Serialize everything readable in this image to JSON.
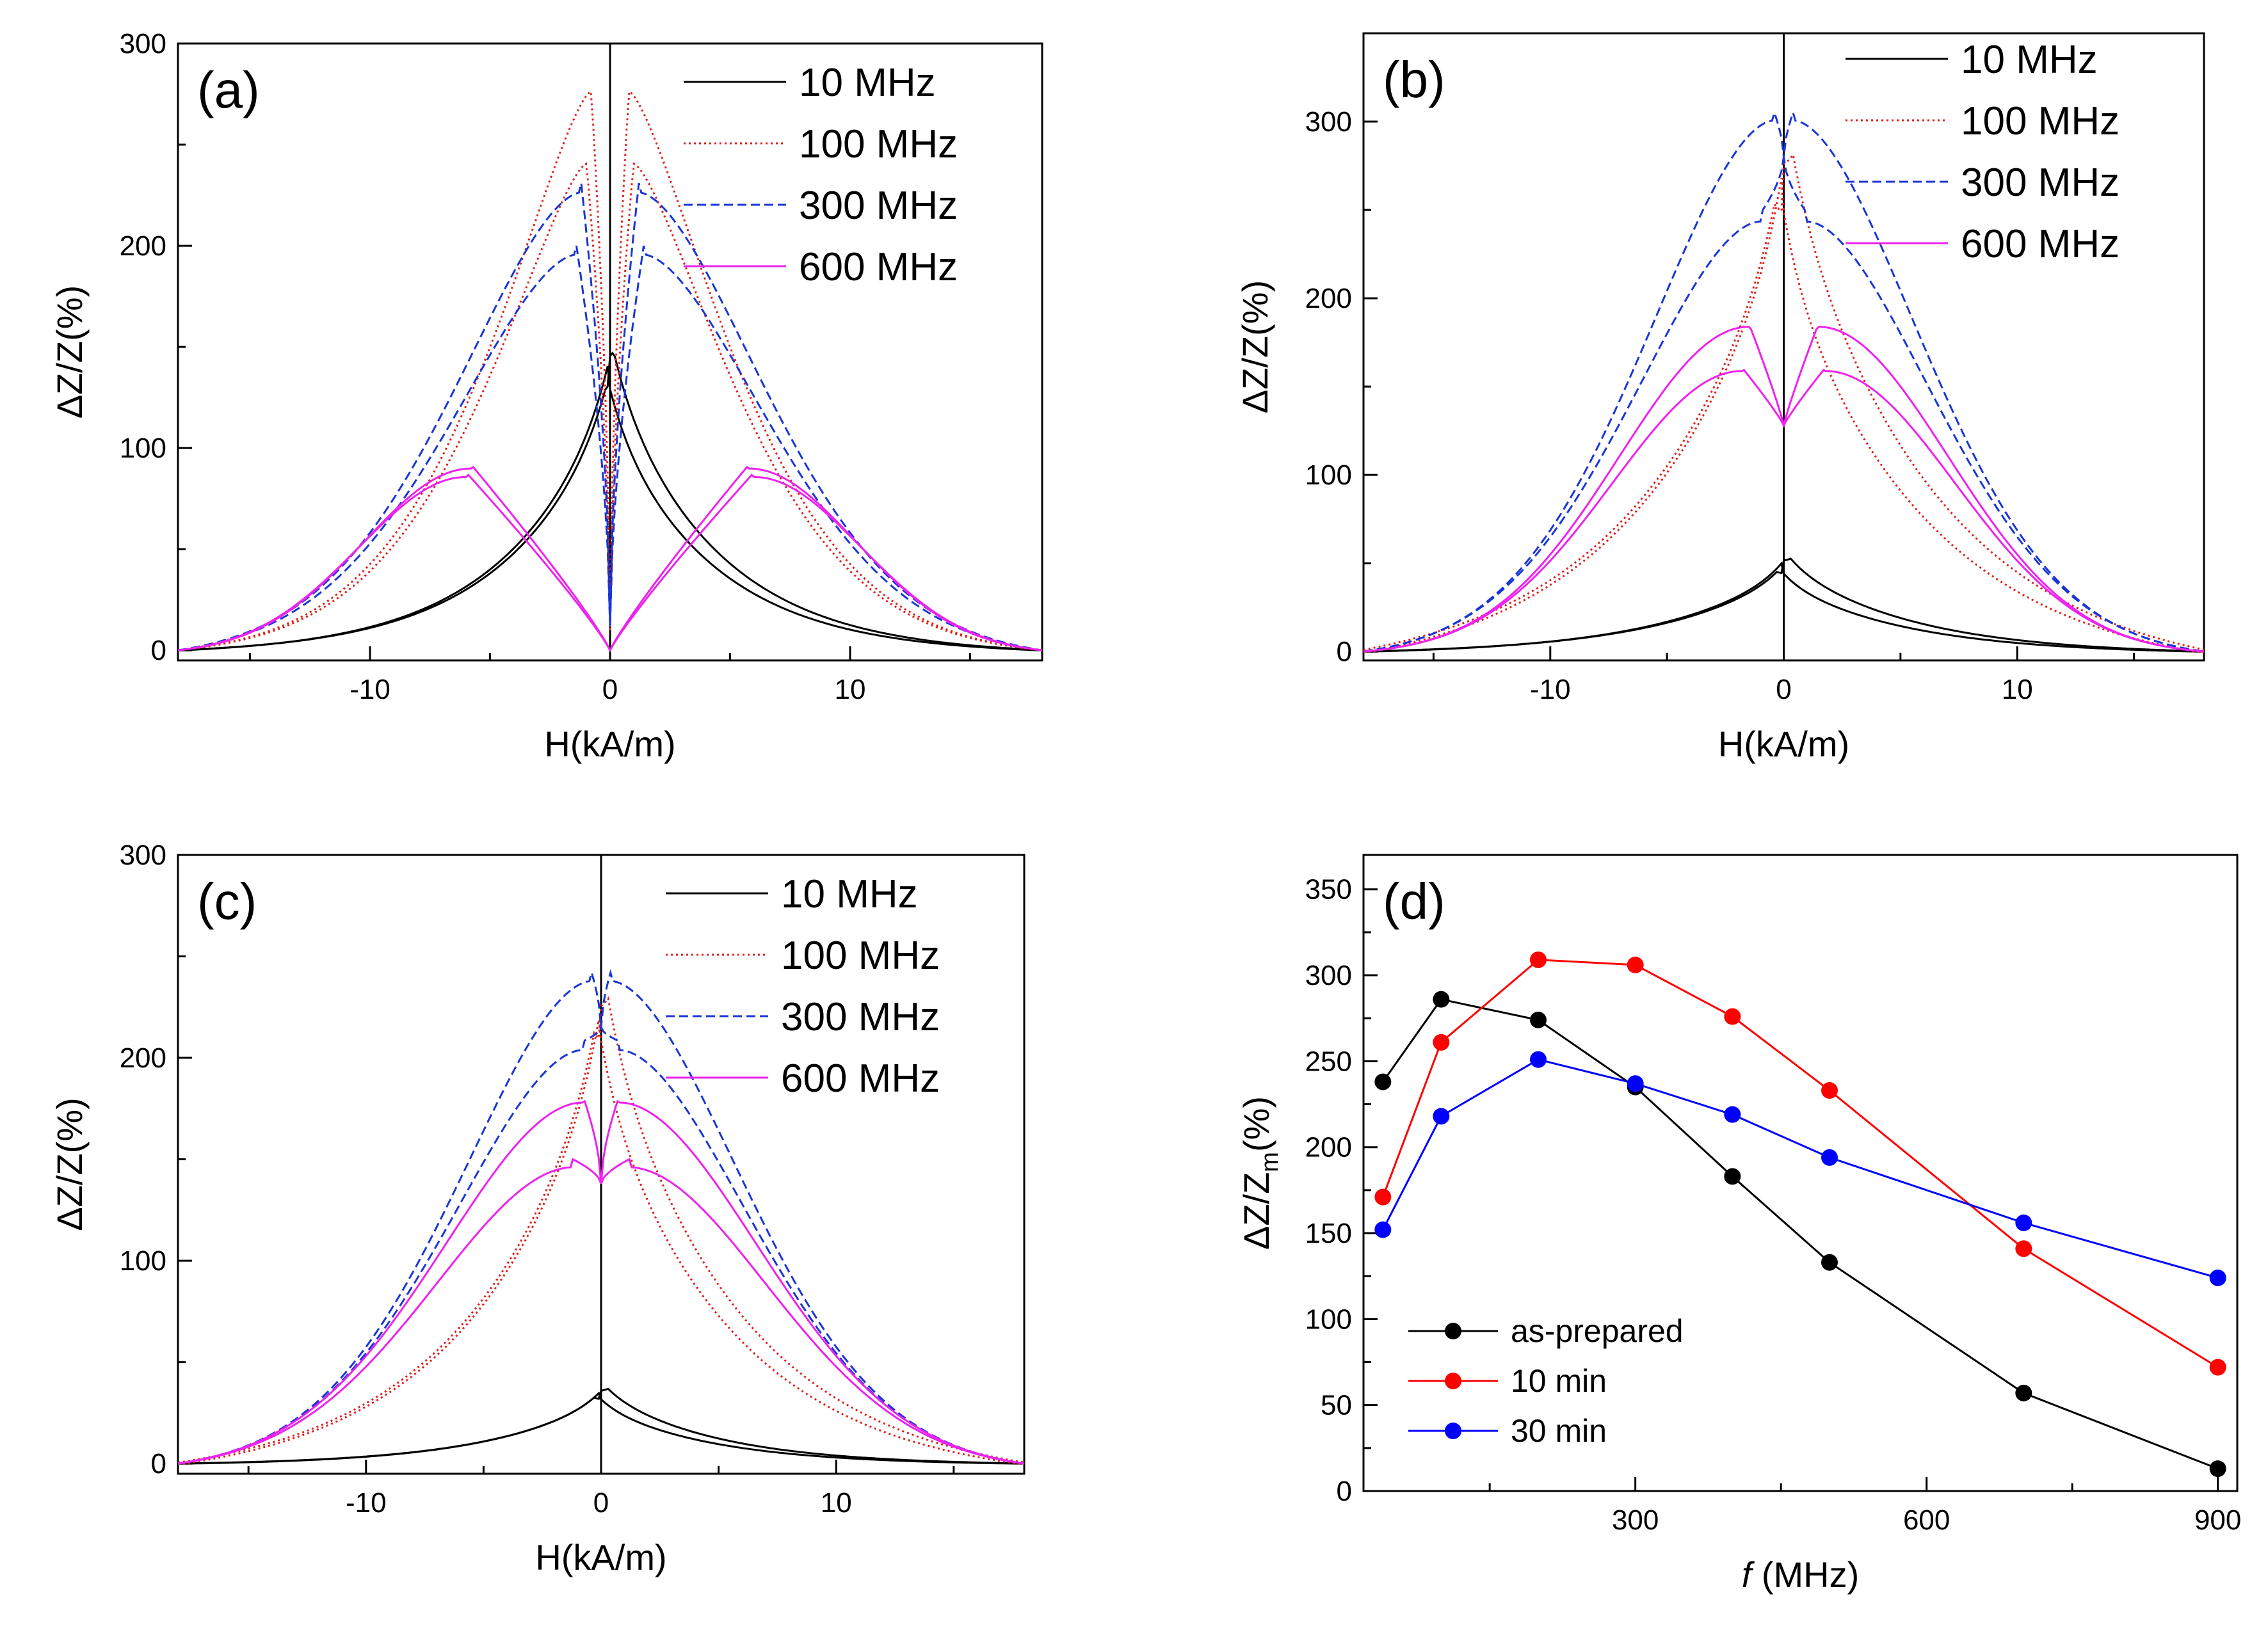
{
  "chart_data": [
    {
      "type": "line",
      "panel_label": "(a)",
      "xlabel": "H(kA/m)",
      "ylabel": "ΔZ/Z(%)",
      "xlim": [
        -18,
        18
      ],
      "ylim": [
        -5,
        300
      ],
      "xticks": [
        -10,
        0,
        10
      ],
      "yticks": [
        0,
        100,
        200,
        300
      ],
      "legend": "top-right",
      "series": [
        {
          "name": "10 MHz",
          "color": "#000000",
          "dash": "solid",
          "model": {
            "type": "peak",
            "peak": 133,
            "dip": 0,
            "w": 4.5,
            "a": 0.18,
            "plateau": 0,
            "mid": 0,
            "shift": 0.15,
            "peak2": 118
          }
        },
        {
          "name": "100 MHz",
          "color": "#e0201c",
          "dash": "dotted",
          "model": {
            "type": "dip",
            "peak": 280,
            "pos": 0.8,
            "tail": 5.5,
            "pow": 1.4,
            "dipw": 0.5,
            "dipmin": 10,
            "peak2": 244,
            "pos2": 1.0
          }
        },
        {
          "name": "300 MHz",
          "color": "#1a35d6",
          "dash": "dashed",
          "model": {
            "type": "dip",
            "peak": 231,
            "pos": 1.2,
            "tail": 7.5,
            "pow": 1.7,
            "dipw": 0.7,
            "dipmin": 12,
            "peak2": 200,
            "pos2": 1.4
          }
        },
        {
          "name": "600 MHz",
          "color": "#ee22ee",
          "dash": "solid",
          "model": {
            "type": "dip",
            "peak": 92,
            "pos": 5.8,
            "tail": 6.6,
            "pow": 2.0,
            "dipw": 3.5,
            "dipmin": 0,
            "peak2": 88,
            "pos2": 6.0
          }
        }
      ]
    },
    {
      "type": "line",
      "panel_label": "(b)",
      "xlabel": "H(kA/m)",
      "ylabel": "ΔZ/Z(%)",
      "xlim": [
        -18,
        18
      ],
      "ylim": [
        -5,
        350
      ],
      "xticks": [
        -10,
        0,
        10
      ],
      "yticks": [
        0,
        100,
        200,
        300
      ],
      "legend": "top-right",
      "series": [
        {
          "name": "10 MHz",
          "color": "#000000",
          "dash": "solid",
          "model": {
            "type": "peak",
            "peak": 49,
            "w": 5.5,
            "peak2": 42,
            "shift": 0.3
          }
        },
        {
          "name": "100 MHz",
          "color": "#e0201c",
          "dash": "dotted",
          "model": {
            "type": "peak",
            "peak": 271,
            "w": 6.5,
            "peak2": 244,
            "shift": 0.4
          }
        },
        {
          "name": "300 MHz",
          "color": "#1a35d6",
          "dash": "dashed",
          "model": {
            "type": "dip",
            "peak": 305,
            "pos": 0.4,
            "tail": 8.0,
            "pow": 1.8,
            "dipw": 0.3,
            "dipmin": 280,
            "peak2": 248,
            "pos2": 1.0
          }
        },
        {
          "name": "600 MHz",
          "color": "#ee22ee",
          "dash": "solid",
          "model": {
            "type": "dip",
            "peak": 186,
            "pos": 1.5,
            "tail": 8.2,
            "pow": 2.0,
            "dipw": 1.0,
            "dipmin": 128,
            "peak2": 161,
            "pos2": 1.8
          }
        }
      ]
    },
    {
      "type": "line",
      "panel_label": "(c)",
      "xlabel": "H(kA/m)",
      "ylabel": "ΔZ/Z(%)",
      "xlim": [
        -18,
        18
      ],
      "ylim": [
        -5,
        300
      ],
      "xticks": [
        -10,
        0,
        10
      ],
      "yticks": [
        0,
        100,
        200,
        300
      ],
      "legend": "top-right",
      "series": [
        {
          "name": "10 MHz",
          "color": "#000000",
          "dash": "solid",
          "model": {
            "type": "peak",
            "peak": 34,
            "w": 5.0,
            "peak2": 30,
            "shift": 0.3
          }
        },
        {
          "name": "100 MHz",
          "color": "#e0201c",
          "dash": "dotted",
          "model": {
            "type": "peak",
            "peak": 216,
            "w": 6.0,
            "peak2": 200,
            "shift": 0.3
          }
        },
        {
          "name": "300 MHz",
          "color": "#1a35d6",
          "dash": "dashed",
          "model": {
            "type": "dip",
            "peak": 242,
            "pos": 0.4,
            "tail": 8.2,
            "pow": 1.8,
            "dipw": 0.3,
            "dipmin": 215,
            "peak2": 208,
            "pos2": 0.8
          }
        },
        {
          "name": "600 MHz",
          "color": "#ee22ee",
          "dash": "solid",
          "model": {
            "type": "dip",
            "peak": 182,
            "pos": 0.8,
            "tail": 8.8,
            "pow": 1.9,
            "dipw": 0.6,
            "dipmin": 138,
            "peak2": 150,
            "pos2": 1.2
          }
        }
      ]
    },
    {
      "type": "line",
      "panel_label": "(d)",
      "xlabel_italic": "f",
      "xlabel": "(MHz)",
      "ylabel": "ΔZ/Z",
      "ylabel_sub": "m",
      "ylabel_tail": "(%)",
      "xlim": [
        20,
        920
      ],
      "ylim": [
        0,
        370
      ],
      "xticks": [
        300,
        600,
        900
      ],
      "yticks": [
        0,
        50,
        100,
        150,
        200,
        250,
        300,
        350
      ],
      "legend": "bottom-left",
      "x": [
        40,
        100,
        200,
        300,
        400,
        500,
        700,
        900
      ],
      "series": [
        {
          "name": "as-prepared",
          "color": "#000000",
          "values": [
            238,
            286,
            274,
            235,
            183,
            133,
            57,
            13
          ]
        },
        {
          "name": "10 min",
          "color": "#ff0000",
          "values": [
            171,
            261,
            309,
            306,
            276,
            233,
            141,
            72
          ]
        },
        {
          "name": "30 min",
          "color": "#0000ff",
          "values": [
            152,
            218,
            251,
            237,
            219,
            194,
            156,
            124
          ]
        }
      ]
    }
  ]
}
